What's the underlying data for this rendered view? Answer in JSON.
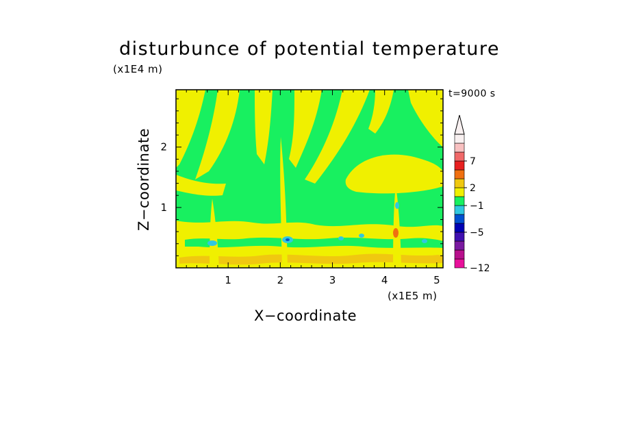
{
  "chart_data": {
    "type": "heatmap",
    "title": "disturbunce of potential temperature",
    "time_label": "t=9000 s",
    "xlabel": "X−coordinate",
    "ylabel": "Z−coordinate",
    "x_unit": "(x1E5 m)",
    "z_unit": "(x1E4 m)",
    "xlim": [
      0,
      5.12
    ],
    "ylim": [
      0,
      2.95
    ],
    "x_ticks": [
      "1",
      "2",
      "3",
      "4",
      "5"
    ],
    "y_ticks": [
      "1",
      "2"
    ],
    "colorbar": {
      "labels": [
        "7",
        "2",
        "−1",
        "−5",
        "−12"
      ],
      "colors": [
        "#e8109a",
        "#b8108c",
        "#7a1aa0",
        "#4010b0",
        "#0000b4",
        "#0050d0",
        "#30c8e0",
        "#18f060",
        "#f0f000",
        "#f0c810",
        "#f07010",
        "#e82020",
        "#f06868",
        "#f8c0c0",
        "#f8f0f0"
      ],
      "extend": "max"
    },
    "colors": {
      "green": "#18f060",
      "yellow": "#f0f000",
      "light-orange": "#f0c810",
      "cyan": "#30c8e0",
      "blue": "#0050d0"
    }
  }
}
